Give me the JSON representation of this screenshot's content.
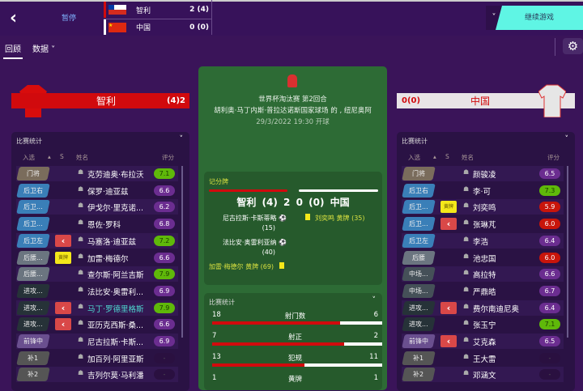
{
  "topbar": {
    "back_icon": "chevron-left-icon",
    "pause": "暂停",
    "continue": "继续游戏"
  },
  "scoreboard_top": [
    {
      "team": "智利",
      "score": "2 (4)",
      "bar_color": "#d10a0d",
      "flag": "chile-flag"
    },
    {
      "team": "中国",
      "score": "0 (0)",
      "bar_color": "#ffffff",
      "flag": "china-flag"
    }
  ],
  "tabs": [
    {
      "label": "回顾",
      "active": true
    },
    {
      "label": "数据 ˅",
      "active": false
    }
  ],
  "home": {
    "name": "智利",
    "score": "(4)2",
    "color": "#d10a0d"
  },
  "away": {
    "name": "中国",
    "score": "0(0)",
    "color": "#e8e4e6"
  },
  "match": {
    "competition": "世界杯淘汰赛 第2回合",
    "venue": "胡利奥·马丁内斯·普拉达诺斯国家球场 的 , 纽尼奥阿",
    "kickoff": "29/3/2022 19:30 开球"
  },
  "scorecard": {
    "title": "记分牌",
    "home": "智利",
    "home_pens": "(4)",
    "home_goals": "2",
    "away_goals": "0",
    "away_pens": "(0)",
    "away": "中国",
    "home_events": [
      {
        "text": "尼古拉斯·卡斯蒂略",
        "min": "(15)",
        "type": "goal"
      },
      {
        "text": "法比安·奥雷利亚纳",
        "min": "(40)",
        "type": "goal"
      },
      {
        "text": "加雷·梅德尔 黄牌 (69)",
        "min": "",
        "type": "yellow"
      }
    ],
    "away_events": [
      {
        "text": "刘奕鸣 黄牌 (35)",
        "type": "yellow"
      }
    ]
  },
  "match_stats": {
    "title": "比赛统计",
    "rows": [
      {
        "home": 18,
        "label": "射门数",
        "away": 6
      },
      {
        "home": 7,
        "label": "射正",
        "away": 2
      },
      {
        "home": 13,
        "label": "犯规",
        "away": 11
      },
      {
        "home": 1,
        "label": "黄牌",
        "away": 1
      }
    ]
  },
  "player_panel": {
    "title": "比赛统计",
    "col_selected": "入选",
    "col_s": "S",
    "col_name": "姓名",
    "col_rating": "评分"
  },
  "home_players": [
    {
      "pos": "门将",
      "pc": "#7a6c5c",
      "ev": "",
      "name": "克劳迪奥·布拉沃",
      "rating": "7.1",
      "rc": "#5fb80a"
    },
    {
      "pos": "后卫右",
      "pc": "#3a7fb8",
      "ev": "",
      "name": "保罗·迪亚兹",
      "rating": "6.6",
      "rc": "#6b2d90"
    },
    {
      "pos": "后卫...",
      "pc": "#3a7fb8",
      "ev": "",
      "name": "伊戈尔·里克诺...",
      "rating": "6.2",
      "rc": "#6b2d90"
    },
    {
      "pos": "后卫...",
      "pc": "#3a7fb8",
      "ev": "",
      "name": "恩佐·罗科",
      "rating": "6.8",
      "rc": "#6b2d90"
    },
    {
      "pos": "后卫左",
      "pc": "#3a7fb8",
      "ev": "sub",
      "name": "马塞洛·迪亚兹",
      "rating": "7.2",
      "rc": "#5fb80a"
    },
    {
      "pos": "后腰...",
      "pc": "#6b7580",
      "ev": "yc",
      "name": "加雷·梅德尔",
      "rating": "6.6",
      "rc": "#6b2d90"
    },
    {
      "pos": "后腰...",
      "pc": "#6b7580",
      "ev": "",
      "name": "查尔斯·阿兰吉斯",
      "rating": "7.9",
      "rc": "#5fb80a"
    },
    {
      "pos": "进攻...",
      "pc": "#263238",
      "ev": "",
      "name": "法比安·奥雷利...",
      "rating": "6.9",
      "rc": "#6b2d90"
    },
    {
      "pos": "进攻...",
      "pc": "#263238",
      "ev": "sub",
      "name": "马丁·罗德里格斯",
      "rating": "7.9",
      "rc": "#5fb80a",
      "highlight": true
    },
    {
      "pos": "进攻...",
      "pc": "#263238",
      "ev": "sub",
      "name": "亚历克西斯·桑...",
      "rating": "6.6",
      "rc": "#6b2d90"
    },
    {
      "pos": "前锋中",
      "pc": "#6a4f8f",
      "ev": "",
      "name": "尼古拉斯·卡斯...",
      "rating": "6.9",
      "rc": "#6b2d90"
    },
    {
      "pos": "补1",
      "pc": "#555",
      "ev": "",
      "name": "加百列·阿里亚斯",
      "rating": "-",
      "rc": "#2a1040"
    },
    {
      "pos": "补2",
      "pc": "#555",
      "ev": "",
      "name": "吉列尔莫·马利潘",
      "rating": "-",
      "rc": "#2a1040"
    }
  ],
  "away_players": [
    {
      "pos": "门将",
      "pc": "#7a6c5c",
      "ev": "",
      "name": "颜骏凌",
      "rating": "6.5",
      "rc": "#6b2d90"
    },
    {
      "pos": "后卫右",
      "pc": "#3a7fb8",
      "ev": "",
      "name": "李·可",
      "rating": "7.3",
      "rc": "#5fb80a"
    },
    {
      "pos": "后卫...",
      "pc": "#3a7fb8",
      "ev": "yc",
      "name": "刘奕鸣",
      "rating": "5.9",
      "rc": "#c8150b"
    },
    {
      "pos": "后卫...",
      "pc": "#3a7fb8",
      "ev": "sub",
      "name": "张琳芃",
      "rating": "6.0",
      "rc": "#c8150b"
    },
    {
      "pos": "后卫左",
      "pc": "#3a7fb8",
      "ev": "",
      "name": "李浩",
      "rating": "6.4",
      "rc": "#6b2d90"
    },
    {
      "pos": "后腰",
      "pc": "#6b7580",
      "ev": "",
      "name": "池忠国",
      "rating": "6.0",
      "rc": "#c8150b"
    },
    {
      "pos": "中场...",
      "pc": "#455058",
      "ev": "",
      "name": "高拉特",
      "rating": "6.6",
      "rc": "#6b2d90"
    },
    {
      "pos": "中场...",
      "pc": "#455058",
      "ev": "",
      "name": "严鼎皓",
      "rating": "6.7",
      "rc": "#6b2d90"
    },
    {
      "pos": "进攻...",
      "pc": "#263238",
      "ev": "sub",
      "name": "费尔南迪尼奥",
      "rating": "6.4",
      "rc": "#6b2d90"
    },
    {
      "pos": "进攻...",
      "pc": "#263238",
      "ev": "",
      "name": "张玉宁",
      "rating": "7.1",
      "rc": "#5fb80a"
    },
    {
      "pos": "前锋中",
      "pc": "#6a4f8f",
      "ev": "sub",
      "name": "艾克森",
      "rating": "6.5",
      "rc": "#6b2d90"
    },
    {
      "pos": "补1",
      "pc": "#555",
      "ev": "",
      "name": "王大雷",
      "rating": "-",
      "rc": "#2a1040"
    },
    {
      "pos": "补2",
      "pc": "#555",
      "ev": "",
      "name": "邓涵文",
      "rating": "-",
      "rc": "#2a1040"
    }
  ],
  "ev_labels": {
    "yc": "黄牌",
    "sub": "‹"
  }
}
